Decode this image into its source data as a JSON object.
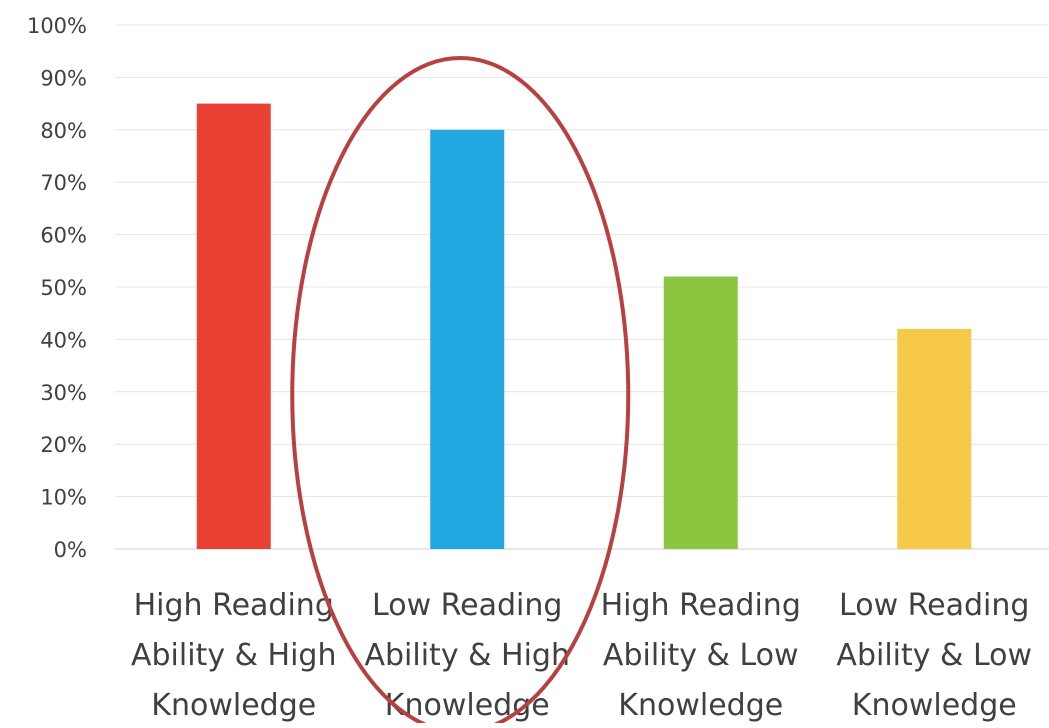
{
  "chart_data": {
    "type": "bar",
    "title": "",
    "xlabel": "",
    "ylabel": "",
    "ylim": [
      0,
      1
    ],
    "y_format": "percent",
    "y_ticks": [
      "0%",
      "10%",
      "20%",
      "30%",
      "40%",
      "50%",
      "60%",
      "70%",
      "80%",
      "90%",
      "100%"
    ],
    "grid": true,
    "legend": "none",
    "categories": [
      [
        "High Reading",
        "Ability & High",
        "Knowledge"
      ],
      [
        "Low Reading",
        "Ability & High",
        "Knowledge"
      ],
      [
        "High Reading",
        "Ability & Low",
        "Knowledge"
      ],
      [
        "Low Reading",
        "Ability & Low",
        "Knowledge"
      ]
    ],
    "values": [
      0.85,
      0.8,
      0.52,
      0.42
    ],
    "colors": [
      "#e94235",
      "#22a7e0",
      "#8cc63f",
      "#f6c94a"
    ],
    "annotation": {
      "shape": "ellipse",
      "highlights_category_index": 1,
      "color": "#b94040"
    }
  }
}
